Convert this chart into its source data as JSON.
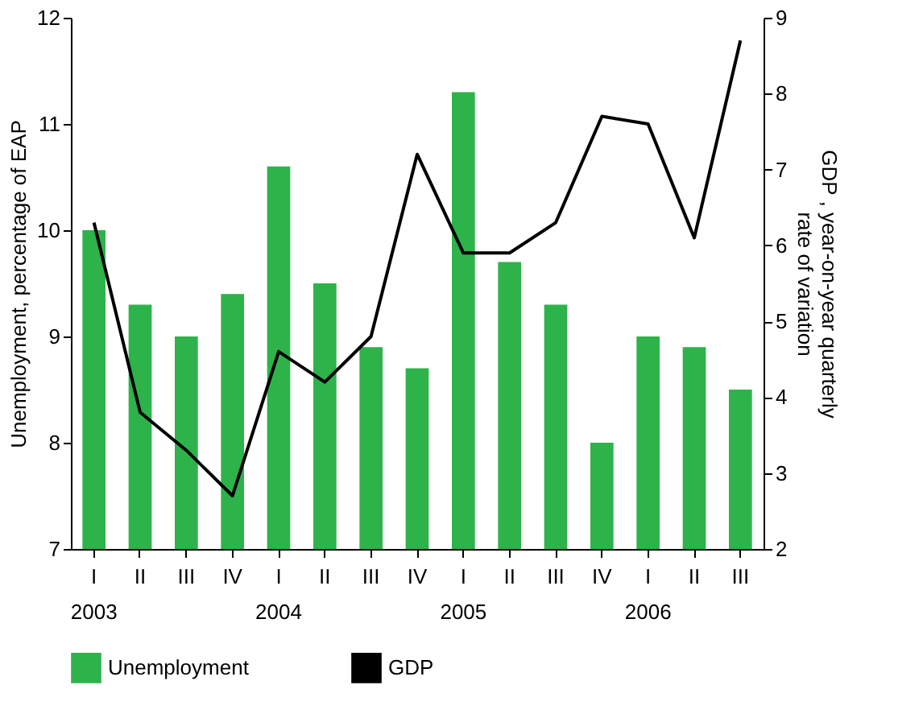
{
  "chart_data": {
    "type": "bar",
    "categories": [
      "I\n2003",
      "II",
      "III",
      "IV",
      "I\n2004",
      "II",
      "III",
      "IV",
      "I\n2005",
      "II",
      "III",
      "IV",
      "I\n2006",
      "II",
      "III"
    ],
    "series": [
      {
        "name": "Unemployment",
        "color": "#2db34a",
        "values": [
          10.0,
          9.3,
          9.0,
          9.4,
          10.6,
          9.5,
          8.9,
          8.7,
          11.3,
          9.7,
          9.3,
          8.0,
          9.0,
          8.9,
          8.5
        ]
      },
      {
        "name": "GDP",
        "type": "line",
        "axis": "y2",
        "color": "#000000",
        "values": [
          6.3,
          3.8,
          3.3,
          2.7,
          4.6,
          4.2,
          4.8,
          7.2,
          5.9,
          5.9,
          6.3,
          7.7,
          7.6,
          6.1,
          8.7
        ]
      }
    ],
    "ylabel": "Unemployment, percentage of EAP",
    "y2label": "GDP , year-on-year quarterly rate of variation",
    "ylim": [
      7,
      12
    ],
    "yticks": [
      7,
      8,
      9,
      10,
      11,
      12
    ],
    "y2lim": [
      2,
      9
    ],
    "y2ticks": [
      2,
      3,
      4,
      5,
      6,
      7,
      8,
      9
    ],
    "grid": false,
    "legend": "bottom",
    "line_style": "solid"
  }
}
